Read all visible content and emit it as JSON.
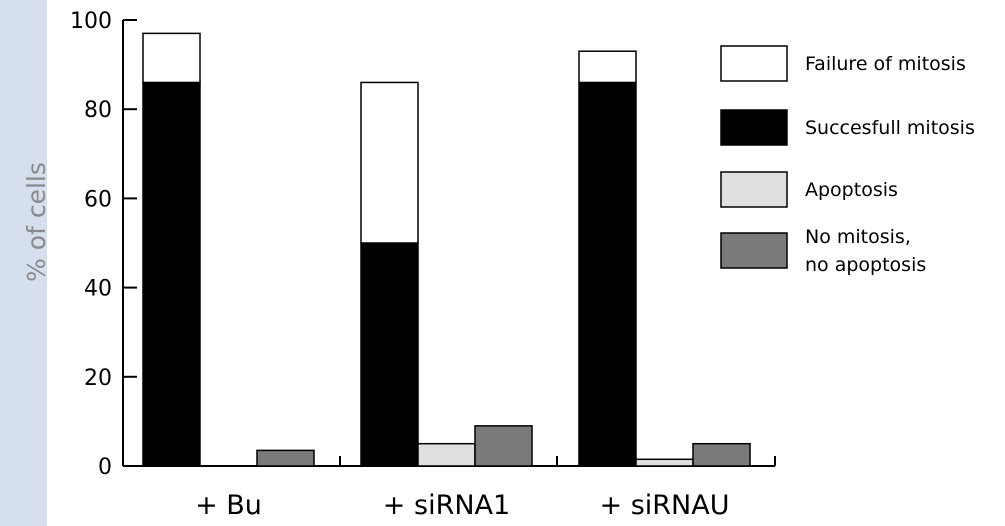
{
  "chart_data": {
    "type": "bar",
    "stacked": true,
    "categories": [
      "+ Bu",
      "+ siRNA1",
      "+ siRNAU"
    ],
    "ylabel": "% of cells",
    "xlabel": "",
    "ylim": [
      0,
      100
    ],
    "yticks": [
      0,
      20,
      40,
      60,
      80,
      100
    ],
    "series": [
      {
        "name": "Succesfull mitosis",
        "color": "#000000",
        "values": [
          86,
          50,
          86
        ]
      },
      {
        "name": "Failure of mitosis",
        "color": "#ffffff",
        "values": [
          11,
          36,
          7
        ]
      },
      {
        "name": "Apoptosis",
        "color": "#e0e0e0",
        "values": [
          0,
          5,
          1.5
        ]
      },
      {
        "name": "No mitosis,\nno apoptosis",
        "color": "#7a7a7a",
        "values": [
          3.5,
          9,
          5
        ]
      }
    ],
    "legend": {
      "position": "right",
      "items": [
        {
          "label": "Failure of mitosis",
          "color": "#ffffff"
        },
        {
          "label": "Succesfull mitosis",
          "color": "#000000"
        },
        {
          "label": "Apoptosis",
          "color": "#e0e0e0"
        },
        {
          "label_lines": [
            "No mitosis,",
            "no apoptosis"
          ],
          "color": "#7a7a7a"
        }
      ]
    },
    "grid": false
  }
}
